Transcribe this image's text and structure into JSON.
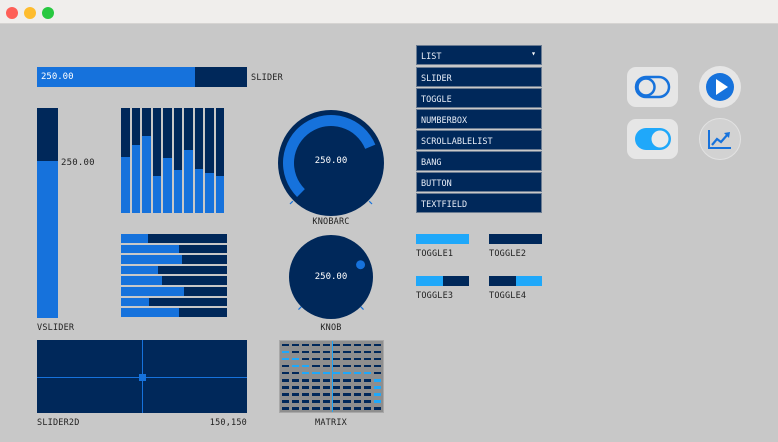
{
  "window": {
    "controls": [
      "close",
      "minimize",
      "maximize"
    ],
    "colors": {
      "close": "#fe5f57",
      "minimize": "#febc2e",
      "maximize": "#28c840"
    }
  },
  "colors": {
    "dark": "#00285a",
    "fill": "#1672dc",
    "toggle_on": "#1fa8fa"
  },
  "slider": {
    "label": "SLIDER",
    "value": "250.00",
    "fill": 0.75
  },
  "vslider": {
    "label": "VSLIDER",
    "value": "250.00",
    "fill": 0.75
  },
  "multi_vertical": {
    "fills": [
      0.53,
      0.65,
      0.73,
      0.35,
      0.52,
      0.41,
      0.6,
      0.42,
      0.38,
      0.35
    ]
  },
  "multi_horizontal": {
    "fills": [
      0.25,
      0.55,
      0.58,
      0.35,
      0.39,
      0.59,
      0.26,
      0.55
    ]
  },
  "knobarc": {
    "label": "KNOBARC",
    "value": "250.00",
    "fill": 0.75
  },
  "knob": {
    "label": "KNOB",
    "value": "250.00",
    "fill": 0.75
  },
  "slider2d": {
    "label": "SLIDER2D",
    "value": "150,150"
  },
  "matrix": {
    "label": "MATRIX",
    "cols": 10,
    "rows": 10,
    "playhead_col": 5,
    "cells": [
      [],
      [
        0
      ],
      [
        0,
        1
      ],
      [
        1,
        2
      ],
      [
        2,
        3,
        4,
        5,
        6,
        7,
        8
      ],
      [
        9
      ],
      [
        9
      ],
      [
        9
      ],
      [
        9
      ],
      []
    ]
  },
  "list": {
    "header": "LIST",
    "items": [
      "SLIDER",
      "TOGGLE",
      "NUMBERBOX",
      "SCROLLABLELIST",
      "BANG",
      "BUTTON",
      "TEXTFIELD"
    ]
  },
  "toggles": [
    {
      "label": "TOGGLE1",
      "state": "full"
    },
    {
      "label": "TOGGLE2",
      "state": "off"
    },
    {
      "label": "TOGGLE3",
      "state": "left"
    },
    {
      "label": "TOGGLE4",
      "state": "right"
    }
  ],
  "icons": [
    "toggle-off-icon",
    "play-icon",
    "toggle-on-icon",
    "chart-trend-icon"
  ]
}
